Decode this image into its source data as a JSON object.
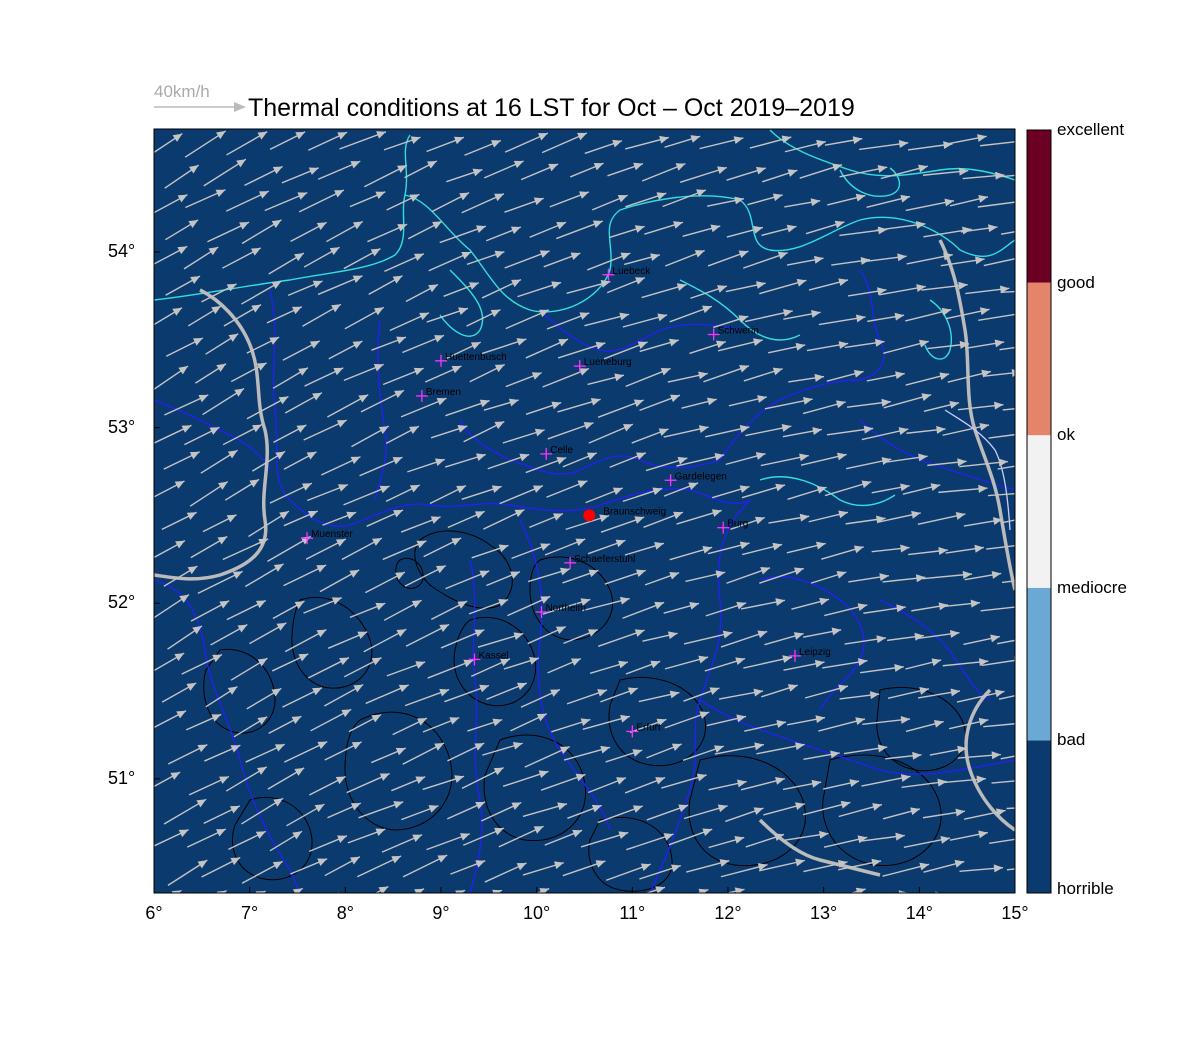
{
  "title": "Thermal conditions at 16 LST for Oct – Oct  2019–2019",
  "wind_legend": {
    "label": "40km/h",
    "speed_kmh": 40,
    "color": "#bbbbbb"
  },
  "map": {
    "lon_range": [
      6,
      15
    ],
    "lat_range": [
      50.35,
      54.7
    ],
    "background_color": "#0b3a6e",
    "coastline_color": "#33dddd",
    "border_color": "#2222ee",
    "river_color": "#bbbbbb",
    "terrain_contour_color": "#000000",
    "wind_color": "#c4c4c4",
    "wind_direction": "from south-west",
    "x_ticks": [
      "6°",
      "7°",
      "8°",
      "9°",
      "10°",
      "11°",
      "12°",
      "13°",
      "14°",
      "15°"
    ],
    "y_ticks": [
      "51°",
      "52°",
      "53°",
      "54°"
    ]
  },
  "cities": [
    {
      "name": "Luebeck",
      "lon": 10.75,
      "lat": 53.87
    },
    {
      "name": "Schwerin",
      "lon": 11.85,
      "lat": 53.53
    },
    {
      "name": "Huettenbusch",
      "lon": 9.0,
      "lat": 53.38
    },
    {
      "name": "Lueneburg",
      "lon": 10.45,
      "lat": 53.35
    },
    {
      "name": "Bremen",
      "lon": 8.8,
      "lat": 53.18
    },
    {
      "name": "Celle",
      "lon": 10.1,
      "lat": 52.85
    },
    {
      "name": "Gardelegen",
      "lon": 11.4,
      "lat": 52.7
    },
    {
      "name": "Braunschweig",
      "lon": 10.55,
      "lat": 52.5,
      "highlight": true
    },
    {
      "name": "Burg",
      "lon": 11.95,
      "lat": 52.43
    },
    {
      "name": "Muenster",
      "lon": 7.6,
      "lat": 52.37
    },
    {
      "name": "Schaeferstuhl",
      "lon": 10.35,
      "lat": 52.23
    },
    {
      "name": "Northeim",
      "lon": 10.05,
      "lat": 51.95
    },
    {
      "name": "Kassel",
      "lon": 9.35,
      "lat": 51.68
    },
    {
      "name": "Leipzig",
      "lon": 12.7,
      "lat": 51.7
    },
    {
      "name": "Erfurt",
      "lon": 11.0,
      "lat": 51.27
    }
  ],
  "colorbar": {
    "categories": [
      {
        "label": "horrible",
        "color": "#0b3a6e"
      },
      {
        "label": "bad",
        "color": "#6aa9d4"
      },
      {
        "label": "mediocre",
        "color": "#f2f2f2"
      },
      {
        "label": "ok",
        "color": "#e48468"
      },
      {
        "label": "good",
        "color": "#6b0022"
      },
      {
        "label": "excellent",
        "color": "#6b0022"
      }
    ]
  }
}
